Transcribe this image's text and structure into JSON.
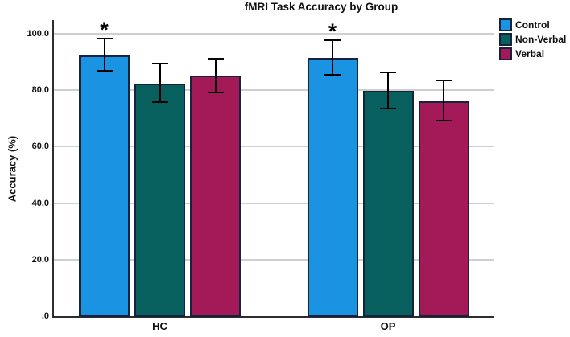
{
  "chart_data": {
    "type": "bar",
    "title": "fMRI Task Accuracy by Group",
    "ylabel": "Accuracy (%)",
    "xlabel": "",
    "categories": [
      "HC",
      "OP"
    ],
    "series": [
      {
        "name": "Control",
        "color": "#1b93e3",
        "values": [
          92.4,
          91.5
        ],
        "err_low": [
          86.9,
          85.6
        ],
        "err_high": [
          98.3,
          97.8
        ],
        "sig_marker": [
          "*",
          "*"
        ]
      },
      {
        "name": "Non-Verbal",
        "color": "#07605d",
        "values": [
          82.4,
          79.8
        ],
        "err_low": [
          75.9,
          73.6
        ],
        "err_high": [
          89.6,
          86.2
        ],
        "sig_marker": [
          "",
          ""
        ]
      },
      {
        "name": "Verbal",
        "color": "#a41a59",
        "values": [
          85.1,
          76.2
        ],
        "err_low": [
          79.3,
          69.3
        ],
        "err_high": [
          91.2,
          83.6
        ],
        "sig_marker": [
          "",
          ""
        ]
      }
    ],
    "yticks": [
      {
        "value": 0,
        "label": ".0"
      },
      {
        "value": 20,
        "label": "20.0"
      },
      {
        "value": 40,
        "label": "40.0"
      },
      {
        "value": 60,
        "label": "60.0"
      },
      {
        "value": 80,
        "label": "80.0"
      },
      {
        "value": 100,
        "label": "100.0"
      }
    ],
    "ylim": [
      0,
      104.8
    ],
    "grid": true,
    "legend_position": "top-right"
  }
}
